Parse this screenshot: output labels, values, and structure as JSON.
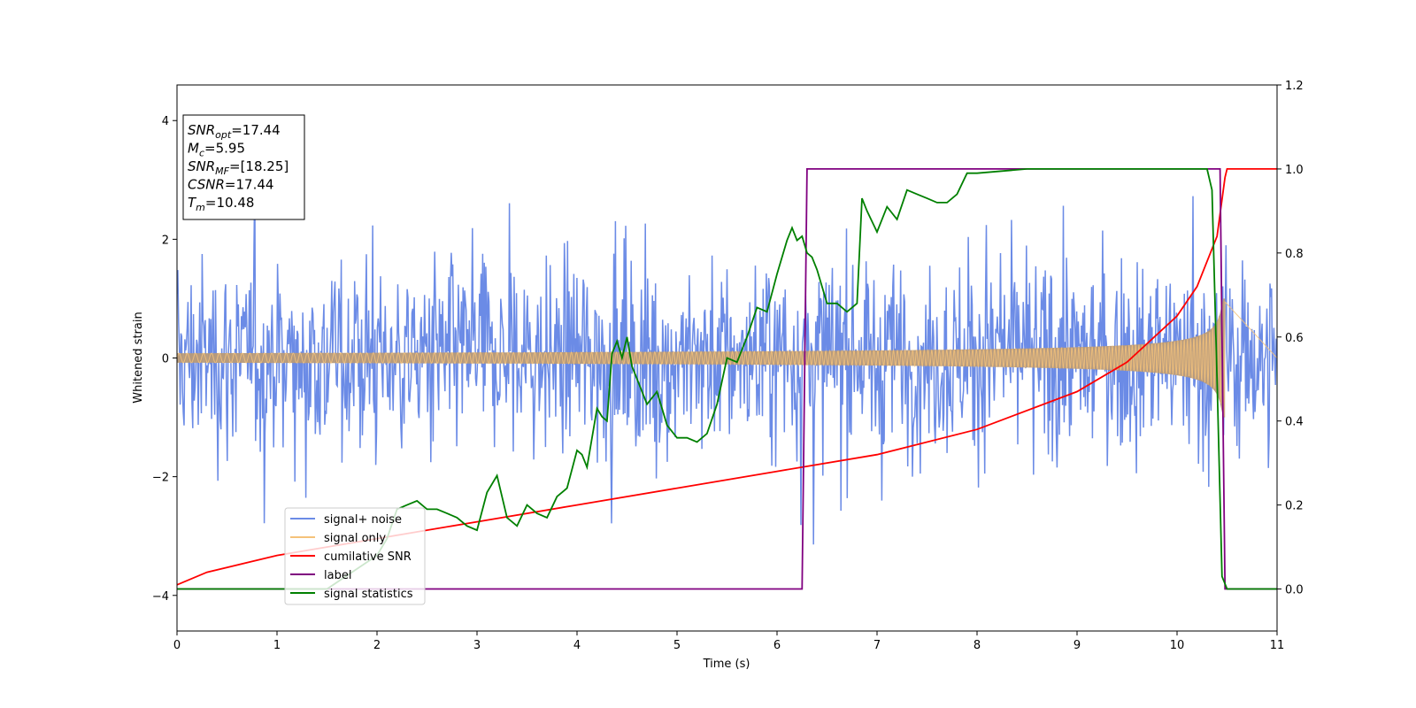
{
  "chart_data": {
    "type": "line",
    "xlabel": "Time (s)",
    "ylabel": "Whitened strain",
    "xlim": [
      0,
      11
    ],
    "ylim": [
      -4.6,
      4.6
    ],
    "y2lim": [
      -0.1,
      1.2
    ],
    "x_ticks": [
      "0",
      "1",
      "2",
      "3",
      "4",
      "5",
      "6",
      "7",
      "8",
      "9",
      "10",
      "11"
    ],
    "y_ticks": [
      "4",
      "2",
      "0",
      "−2",
      "−4"
    ],
    "y2_ticks": [
      "1.2",
      "1.0",
      "0.8",
      "0.6",
      "0.4",
      "0.2",
      "0.0"
    ],
    "grid": false,
    "legend_position": "lower-left",
    "annotation": {
      "lines": [
        {
          "sym": "SNR",
          "sub": "opt",
          "value": "=17.44"
        },
        {
          "sym": "M",
          "sub": "c",
          "value": "=5.95"
        },
        {
          "sym": "SNR",
          "sub": "MF",
          "value": "=[18.25]"
        },
        {
          "sym": "CSNR",
          "sub": "",
          "value": "=17.44"
        },
        {
          "sym": "T",
          "sub": "m",
          "value": "=10.48"
        }
      ]
    },
    "series": [
      {
        "name": "signal+ noise",
        "axis": "left",
        "color": "#6b8be6",
        "kind": "noise",
        "sigma": 1.0,
        "samples": 1400
      },
      {
        "name": "signal only",
        "axis": "left",
        "color": "#f5c27a",
        "kind": "chirp",
        "amplitude_start": 0.08,
        "amplitude_end": 1.0,
        "t_merge": 10.48,
        "fill_color": "#b89a78"
      },
      {
        "name": "cumilative SNR",
        "axis": "right",
        "color": "#ff0000",
        "x": [
          0,
          0.3,
          1,
          2,
          3,
          4,
          5,
          6,
          7,
          8,
          9,
          9.5,
          10,
          10.2,
          10.4,
          10.48,
          10.5,
          11
        ],
        "y": [
          0.01,
          0.04,
          0.08,
          0.12,
          0.16,
          0.2,
          0.24,
          0.28,
          0.32,
          0.38,
          0.47,
          0.54,
          0.65,
          0.72,
          0.84,
          0.98,
          1.0,
          1.0
        ]
      },
      {
        "name": "label",
        "axis": "right",
        "color": "#800080",
        "x": [
          0,
          6.25,
          6.3,
          10.43,
          10.48,
          11
        ],
        "y": [
          0,
          0,
          1,
          1,
          0,
          0
        ]
      },
      {
        "name": "signal statistics",
        "axis": "right",
        "color": "#008000",
        "x": [
          0,
          0.5,
          1,
          1.5,
          2,
          2.1,
          2.2,
          2.3,
          2.4,
          2.5,
          2.6,
          2.7,
          2.8,
          2.9,
          3.0,
          3.1,
          3.2,
          3.3,
          3.4,
          3.5,
          3.6,
          3.7,
          3.8,
          3.9,
          4.0,
          4.05,
          4.1,
          4.2,
          4.25,
          4.3,
          4.35,
          4.4,
          4.45,
          4.5,
          4.55,
          4.6,
          4.7,
          4.8,
          4.9,
          5.0,
          5.1,
          5.2,
          5.3,
          5.4,
          5.5,
          5.6,
          5.7,
          5.8,
          5.9,
          6.0,
          6.1,
          6.15,
          6.2,
          6.25,
          6.3,
          6.35,
          6.4,
          6.5,
          6.6,
          6.7,
          6.8,
          6.85,
          6.9,
          7.0,
          7.1,
          7.2,
          7.3,
          7.4,
          7.5,
          7.6,
          7.7,
          7.8,
          7.9,
          8.0,
          8.5,
          9.0,
          9.5,
          10.0,
          10.3,
          10.35,
          10.4,
          10.45,
          10.5,
          11
        ],
        "y": [
          0.0,
          0.0,
          0.0,
          0.0,
          0.08,
          0.12,
          0.19,
          0.2,
          0.21,
          0.19,
          0.19,
          0.18,
          0.17,
          0.15,
          0.14,
          0.23,
          0.27,
          0.17,
          0.15,
          0.2,
          0.18,
          0.17,
          0.22,
          0.24,
          0.33,
          0.32,
          0.29,
          0.43,
          0.41,
          0.4,
          0.56,
          0.59,
          0.55,
          0.6,
          0.53,
          0.5,
          0.44,
          0.47,
          0.39,
          0.36,
          0.36,
          0.35,
          0.37,
          0.44,
          0.55,
          0.54,
          0.6,
          0.67,
          0.66,
          0.75,
          0.83,
          0.86,
          0.83,
          0.84,
          0.8,
          0.79,
          0.76,
          0.68,
          0.68,
          0.66,
          0.68,
          0.93,
          0.9,
          0.85,
          0.91,
          0.88,
          0.95,
          0.94,
          0.93,
          0.92,
          0.92,
          0.94,
          0.99,
          0.99,
          1.0,
          1.0,
          1.0,
          1.0,
          1.0,
          0.95,
          0.5,
          0.03,
          0.0,
          0.0
        ]
      }
    ]
  }
}
